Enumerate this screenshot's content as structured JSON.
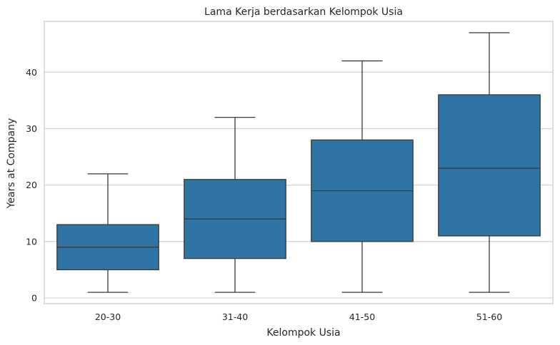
{
  "chart_data": {
    "type": "boxplot",
    "title": "Lama Kerja berdasarkan Kelompok Usia",
    "xlabel": "Kelompok Usia",
    "ylabel": "Years at Company",
    "ylim": [
      -1,
      49
    ],
    "yticks": [
      0,
      10,
      20,
      30,
      40
    ],
    "grid": "horizontal",
    "box_color": "#2e75a6",
    "line_color": "#3a3a3a",
    "categories": [
      "20-30",
      "31-40",
      "41-50",
      "51-60"
    ],
    "boxes": [
      {
        "category": "20-30",
        "min": 1,
        "q1": 5,
        "median": 9,
        "q3": 13,
        "max": 22
      },
      {
        "category": "31-40",
        "min": 1,
        "q1": 7,
        "median": 14,
        "q3": 21,
        "max": 32
      },
      {
        "category": "41-50",
        "min": 1,
        "q1": 10,
        "median": 19,
        "q3": 28,
        "max": 42
      },
      {
        "category": "51-60",
        "min": 1,
        "q1": 11,
        "median": 23,
        "q3": 36,
        "max": 47
      }
    ]
  }
}
